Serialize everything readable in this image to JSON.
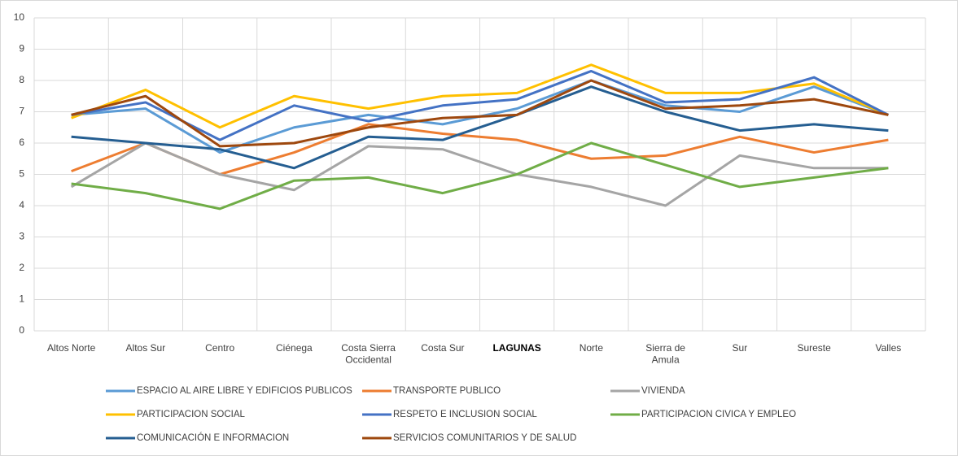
{
  "chart_data": {
    "type": "line",
    "categories": [
      "Altos Norte",
      "Altos Sur",
      "Centro",
      "Ciénega",
      "Costa Sierra\nOccidental",
      "Costa Sur",
      "LAGUNAS",
      "Norte",
      "Sierra de\nAmula",
      "Sur",
      "Sureste",
      "Valles"
    ],
    "series": [
      {
        "name": "ESPACIO AL AIRE LIBRE Y EDIFICIOS PUBLICOS",
        "color": "#5b9bd5",
        "values": [
          6.9,
          7.1,
          5.7,
          6.5,
          6.9,
          6.6,
          7.1,
          8.0,
          7.2,
          7.0,
          7.8,
          6.9
        ]
      },
      {
        "name": "TRANSPORTE PUBLICO",
        "color": "#ed7d31",
        "values": [
          5.1,
          6.0,
          5.0,
          5.7,
          6.6,
          6.3,
          6.1,
          5.5,
          5.6,
          6.2,
          5.7,
          6.1
        ]
      },
      {
        "name": "VIVIENDA",
        "color": "#a5a5a5",
        "values": [
          4.6,
          6.0,
          5.0,
          4.5,
          5.9,
          5.8,
          5.0,
          4.6,
          4.0,
          5.6,
          5.2,
          5.2
        ]
      },
      {
        "name": "PARTICIPACION SOCIAL",
        "color": "#ffc000",
        "values": [
          6.8,
          7.7,
          6.5,
          7.5,
          7.1,
          7.5,
          7.6,
          8.5,
          7.6,
          7.6,
          7.9,
          6.9
        ]
      },
      {
        "name": "RESPETO E INCLUSION SOCIAL",
        "color": "#4472c4",
        "values": [
          6.9,
          7.3,
          6.1,
          7.2,
          6.7,
          7.2,
          7.4,
          8.3,
          7.3,
          7.4,
          8.1,
          6.9
        ]
      },
      {
        "name": "PARTICIPACION CIVICA Y EMPLEO",
        "color": "#70ad47",
        "values": [
          4.7,
          4.4,
          3.9,
          4.8,
          4.9,
          4.4,
          5.0,
          6.0,
          5.3,
          4.6,
          4.9,
          5.2
        ]
      },
      {
        "name": "COMUNICACIÓN E INFORMACION",
        "color": "#255e91",
        "values": [
          6.2,
          6.0,
          5.8,
          5.2,
          6.2,
          6.1,
          6.9,
          7.8,
          7.0,
          6.4,
          6.6,
          6.4
        ]
      },
      {
        "name": "SERVICIOS COMUNITARIOS Y DE SALUD",
        "color": "#9e480e",
        "values": [
          6.9,
          7.5,
          5.9,
          6.0,
          6.5,
          6.8,
          6.9,
          8.0,
          7.1,
          7.2,
          7.4,
          6.9
        ]
      }
    ],
    "ylim": [
      0,
      10
    ],
    "yticks": [
      0,
      1,
      2,
      3,
      4,
      5,
      6,
      7,
      8,
      9,
      10
    ],
    "grid": true,
    "legend": "bottom"
  }
}
